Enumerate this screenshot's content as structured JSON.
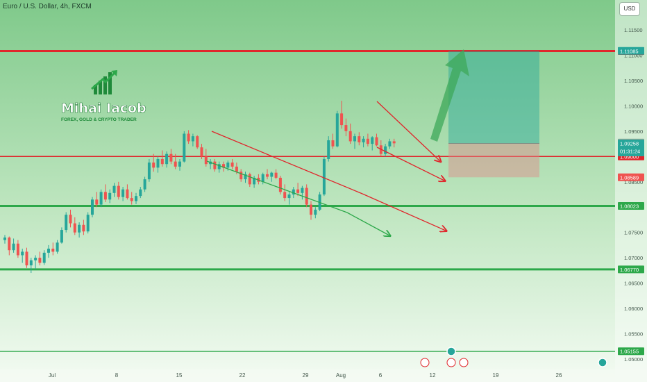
{
  "header": {
    "title": "Euro / U.S. Dollar, 4h, FXCM",
    "currency_button": "USD"
  },
  "brand": {
    "name": "Mihai Iacob",
    "tagline": "FOREX, GOLD & CRYPTO TRADER"
  },
  "colors": {
    "resistance": "#e0252b",
    "support": "#2da84a",
    "up": "#26a69a",
    "down": "#ef5350"
  },
  "chart_data": {
    "type": "candlestick",
    "title": "Euro / U.S. Dollar, 4h, FXCM",
    "ylim": [
      1.048,
      1.122
    ],
    "y_ticks": [
      "1.11500",
      "1.11000",
      "1.10500",
      "1.10000",
      "1.09500",
      "1.09000",
      "1.08500",
      "1.08000",
      "1.07500",
      "1.07000",
      "1.06500",
      "1.06000",
      "1.05500",
      "1.05000"
    ],
    "x_ticks": [
      "Jul",
      "8",
      "15",
      "22",
      "29",
      "Aug",
      "6",
      "12",
      "19",
      "26"
    ],
    "horizontal_levels": [
      {
        "value": 1.11082,
        "label": "1.11082",
        "color": "#e0252b",
        "thick": true
      },
      {
        "value": 1.09,
        "label": "1.09000",
        "color": "#e0252b",
        "thick": false
      },
      {
        "value": 1.08023,
        "label": "1.08023",
        "color": "#2da84a",
        "thick": true
      },
      {
        "value": 1.0677,
        "label": "1.06770",
        "color": "#2da84a",
        "thick": true
      },
      {
        "value": 1.05155,
        "label": "1.05155",
        "color": "#2da84a",
        "thick": false
      }
    ],
    "price_labels": [
      {
        "value": 1.11085,
        "label": "1.11085",
        "color": "#26a69a"
      },
      {
        "value": 1.09275,
        "label": "1.09275",
        "color": "#8fa79a"
      },
      {
        "value": 1.09258,
        "label": "1.09258",
        "color": "#26a69a",
        "sub": "01:31:24"
      },
      {
        "value": 1.08589,
        "label": "1.08589",
        "color": "#ef5350"
      }
    ],
    "position": {
      "entry": 1.09258,
      "target": 1.11085,
      "stop": 1.08589
    },
    "candles": [
      [
        1.0735,
        1.0745,
        1.0728,
        1.074
      ],
      [
        1.074,
        1.0742,
        1.0705,
        1.0715
      ],
      [
        1.0715,
        1.0738,
        1.071,
        1.0728
      ],
      [
        1.0728,
        1.0735,
        1.07,
        1.0705
      ],
      [
        1.0705,
        1.0718,
        1.069,
        1.0712
      ],
      [
        1.0712,
        1.072,
        1.068,
        1.0685
      ],
      [
        1.0685,
        1.07,
        1.067,
        1.0695
      ],
      [
        1.0695,
        1.0705,
        1.0678,
        1.07
      ],
      [
        1.07,
        1.0712,
        1.0685,
        1.069
      ],
      [
        1.069,
        1.0715,
        1.0686,
        1.071
      ],
      [
        1.071,
        1.0725,
        1.07,
        1.0718
      ],
      [
        1.0718,
        1.073,
        1.0705,
        1.0712
      ],
      [
        1.0712,
        1.0735,
        1.0708,
        1.073
      ],
      [
        1.073,
        1.076,
        1.0728,
        1.0755
      ],
      [
        1.0755,
        1.079,
        1.075,
        1.0785
      ],
      [
        1.0785,
        1.0795,
        1.076,
        1.0768
      ],
      [
        1.0768,
        1.078,
        1.0745,
        1.075
      ],
      [
        1.075,
        1.077,
        1.074,
        1.0765
      ],
      [
        1.0765,
        1.0775,
        1.0745,
        1.0752
      ],
      [
        1.0752,
        1.079,
        1.0748,
        1.0785
      ],
      [
        1.0785,
        1.082,
        1.078,
        1.0815
      ],
      [
        1.0815,
        1.083,
        1.08,
        1.0805
      ],
      [
        1.0805,
        1.0835,
        1.08,
        1.083
      ],
      [
        1.083,
        1.0845,
        1.081,
        1.0815
      ],
      [
        1.0815,
        1.0835,
        1.0808,
        1.0828
      ],
      [
        1.0828,
        1.0848,
        1.082,
        1.0842
      ],
      [
        1.0842,
        1.085,
        1.0815,
        1.082
      ],
      [
        1.082,
        1.084,
        1.0812,
        1.0835
      ],
      [
        1.0835,
        1.0845,
        1.0815,
        1.0818
      ],
      [
        1.0818,
        1.083,
        1.0805,
        1.0812
      ],
      [
        1.0812,
        1.0828,
        1.0806,
        1.0822
      ],
      [
        1.0822,
        1.084,
        1.0818,
        1.0835
      ],
      [
        1.0835,
        1.086,
        1.083,
        1.0855
      ],
      [
        1.0855,
        1.0895,
        1.085,
        1.0888
      ],
      [
        1.0888,
        1.0905,
        1.087,
        1.0878
      ],
      [
        1.0878,
        1.09,
        1.0868,
        1.0895
      ],
      [
        1.0895,
        1.0912,
        1.088,
        1.0885
      ],
      [
        1.0885,
        1.091,
        1.0878,
        1.0905
      ],
      [
        1.0905,
        1.0915,
        1.0885,
        1.089
      ],
      [
        1.089,
        1.0905,
        1.0875,
        1.088
      ],
      [
        1.088,
        1.0895,
        1.0872,
        1.089
      ],
      [
        1.089,
        1.095,
        1.0888,
        1.0945
      ],
      [
        1.0945,
        1.0952,
        1.0925,
        1.093
      ],
      [
        1.093,
        1.0945,
        1.092,
        1.094
      ],
      [
        1.094,
        1.0942,
        1.0915,
        1.0918
      ],
      [
        1.0918,
        1.0925,
        1.0895,
        1.09
      ],
      [
        1.09,
        1.0915,
        1.088,
        1.0885
      ],
      [
        1.0885,
        1.0895,
        1.0875,
        1.089
      ],
      [
        1.089,
        1.0895,
        1.087,
        1.0875
      ],
      [
        1.0875,
        1.089,
        1.0868,
        1.0885
      ],
      [
        1.0885,
        1.089,
        1.087,
        1.0878
      ],
      [
        1.0878,
        1.0892,
        1.0872,
        1.0888
      ],
      [
        1.0888,
        1.0895,
        1.0875,
        1.088
      ],
      [
        1.088,
        1.0888,
        1.0865,
        1.087
      ],
      [
        1.087,
        1.0875,
        1.085,
        1.0855
      ],
      [
        1.0855,
        1.087,
        1.0848,
        1.0865
      ],
      [
        1.0865,
        1.0868,
        1.084,
        1.0845
      ],
      [
        1.0845,
        1.0862,
        1.0838,
        1.0858
      ],
      [
        1.0858,
        1.0865,
        1.0845,
        1.085
      ],
      [
        1.085,
        1.0868,
        1.0845,
        1.0865
      ],
      [
        1.0865,
        1.0875,
        1.0855,
        1.086
      ],
      [
        1.086,
        1.087,
        1.085,
        1.0868
      ],
      [
        1.0868,
        1.0875,
        1.0855,
        1.0858
      ],
      [
        1.0858,
        1.0862,
        1.0825,
        1.083
      ],
      [
        1.083,
        1.0845,
        1.0812,
        1.0818
      ],
      [
        1.0818,
        1.083,
        1.0805,
        1.0825
      ],
      [
        1.0825,
        1.084,
        1.0818,
        1.0835
      ],
      [
        1.0835,
        1.0848,
        1.0822,
        1.0828
      ],
      [
        1.0828,
        1.0842,
        1.0815,
        1.0838
      ],
      [
        1.0838,
        1.0845,
        1.08,
        1.0805
      ],
      [
        1.0805,
        1.0812,
        1.0775,
        1.0785
      ],
      [
        1.0785,
        1.08,
        1.0778,
        1.0795
      ],
      [
        1.0795,
        1.083,
        1.0792,
        1.0825
      ],
      [
        1.0825,
        1.09,
        1.0822,
        1.0895
      ],
      [
        1.0895,
        1.094,
        1.089,
        1.0932
      ],
      [
        1.0932,
        1.0945,
        1.0915,
        1.092
      ],
      [
        1.092,
        1.099,
        1.0918,
        1.0985
      ],
      [
        1.0985,
        1.101,
        1.0955,
        1.0962
      ],
      [
        1.0962,
        1.0975,
        1.094,
        1.095
      ],
      [
        1.095,
        1.0965,
        1.0925,
        1.093
      ],
      [
        1.093,
        1.0945,
        1.0915,
        1.094
      ],
      [
        1.094,
        1.0948,
        1.0922,
        1.0928
      ],
      [
        1.0928,
        1.094,
        1.0918,
        1.0935
      ],
      [
        1.0935,
        1.0945,
        1.092,
        1.0925
      ],
      [
        1.0925,
        1.094,
        1.0912,
        1.0938
      ],
      [
        1.0938,
        1.0945,
        1.092,
        1.0922
      ],
      [
        1.0922,
        1.0932,
        1.09,
        1.0905
      ],
      [
        1.0905,
        1.0925,
        1.09,
        1.092
      ],
      [
        1.092,
        1.0935,
        1.0915,
        1.093
      ],
      [
        1.093,
        1.0935,
        1.0918,
        1.0926
      ]
    ]
  }
}
